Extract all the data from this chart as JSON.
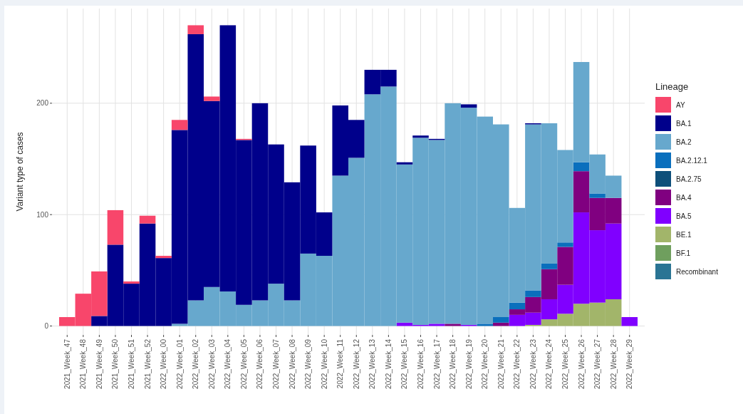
{
  "chart_data": {
    "type": "bar",
    "stacked": true,
    "ylabel": "Variant type of cases",
    "legend_title": "Lineage",
    "legend": "right",
    "grid": true,
    "ylim": [
      -8,
      285
    ],
    "yticks": [
      0,
      100,
      200
    ],
    "categories": [
      "2021_Week_47",
      "2021_Week_48",
      "2021_Week_49",
      "2021_Week_50",
      "2021_Week_51",
      "2021_Week_52",
      "2022_Week_00",
      "2022_Week_01",
      "2022_Week_02",
      "2022_Week_03",
      "2022_Week_04",
      "2022_Week_05",
      "2022_Week_06",
      "2022_Week_07",
      "2022_Week_08",
      "2022_Week_09",
      "2022_Week_10",
      "2022_Week_11",
      "2022_Week_12",
      "2022_Week_13",
      "2022_Week_14",
      "2022_Week_15",
      "2022_Week_16",
      "2022_Week_17",
      "2022_Week_18",
      "2022_Week_19",
      "2022_Week_20",
      "2022_Week_21",
      "2022_Week_22",
      "2022_Week_23",
      "2022_Week_24",
      "2022_Week_25",
      "2022_Week_26",
      "2022_Week_27",
      "2022_Week_28",
      "2022_Week_29"
    ],
    "series": [
      {
        "name": "Recombinant",
        "color": "#2a7494",
        "values": [
          0,
          0,
          0,
          0,
          0,
          0,
          0,
          0,
          0,
          0,
          0,
          0,
          0,
          0,
          0,
          0,
          0,
          0,
          0,
          0,
          0,
          0,
          0,
          0,
          0,
          0,
          0,
          0,
          0,
          0,
          0,
          0,
          0,
          0,
          0,
          0
        ]
      },
      {
        "name": "BF.1",
        "color": "#6f9f5e",
        "values": [
          0,
          0,
          0,
          0,
          0,
          0,
          0,
          0,
          0,
          0,
          0,
          0,
          0,
          0,
          0,
          0,
          0,
          0,
          0,
          0,
          0,
          0,
          0,
          0,
          0,
          0,
          0,
          0,
          0,
          0,
          0,
          0,
          0,
          0,
          0,
          0
        ]
      },
      {
        "name": "BE.1",
        "color": "#a2b56a",
        "values": [
          0,
          0,
          0,
          0,
          0,
          0,
          0,
          0,
          0,
          0,
          0,
          0,
          0,
          0,
          0,
          0,
          0,
          0,
          0,
          0,
          0,
          0,
          0,
          0,
          0,
          0,
          0,
          0,
          0,
          1,
          6,
          11,
          20,
          21,
          24,
          0
        ]
      },
      {
        "name": "BA.5",
        "color": "#8000ff",
        "values": [
          0,
          0,
          0,
          0,
          0,
          0,
          0,
          0,
          0,
          0,
          0,
          0,
          0,
          0,
          0,
          0,
          0,
          0,
          0,
          0,
          0,
          3,
          1,
          2,
          0,
          1,
          0,
          0,
          10,
          11,
          18,
          26,
          82,
          65,
          68,
          8
        ]
      },
      {
        "name": "BA.4",
        "color": "#800080",
        "values": [
          0,
          0,
          0,
          0,
          0,
          0,
          0,
          0,
          0,
          0,
          0,
          0,
          0,
          0,
          0,
          0,
          0,
          0,
          0,
          0,
          0,
          0,
          0,
          0,
          2,
          0,
          0,
          3,
          5,
          14,
          27,
          34,
          37,
          29,
          23,
          0
        ]
      },
      {
        "name": "BA.2.75",
        "color": "#0e4f7a",
        "values": [
          0,
          0,
          0,
          0,
          0,
          0,
          0,
          0,
          0,
          0,
          0,
          0,
          0,
          0,
          0,
          0,
          0,
          0,
          0,
          0,
          0,
          0,
          0,
          0,
          0,
          0,
          0,
          0,
          0,
          0,
          0,
          0,
          0,
          0,
          0,
          0
        ]
      },
      {
        "name": "BA.2.12.1",
        "color": "#0a6fbd",
        "values": [
          0,
          0,
          0,
          0,
          0,
          0,
          0,
          0,
          0,
          0,
          0,
          0,
          0,
          0,
          0,
          0,
          0,
          0,
          0,
          0,
          0,
          0,
          0,
          0,
          0,
          0,
          2,
          5,
          6,
          6,
          5,
          4,
          8,
          4,
          0,
          0
        ]
      },
      {
        "name": "BA.2",
        "color": "#67a8cd",
        "values": [
          0,
          0,
          0,
          0,
          0,
          0,
          0,
          2,
          23,
          35,
          31,
          19,
          23,
          38,
          23,
          65,
          63,
          135,
          151,
          208,
          215,
          142,
          168,
          165,
          198,
          195,
          186,
          173,
          85,
          149,
          126,
          83,
          90,
          35,
          20,
          0
        ]
      },
      {
        "name": "BA.1",
        "color": "#00008b",
        "values": [
          0,
          0,
          9,
          73,
          38,
          92,
          61,
          174,
          239,
          167,
          239,
          148,
          177,
          125,
          106,
          97,
          39,
          63,
          34,
          22,
          15,
          2,
          2,
          1,
          0,
          3,
          0,
          0,
          0,
          1,
          0,
          0,
          0,
          0,
          0,
          0
        ]
      },
      {
        "name": "AY",
        "color": "#f8466b",
        "values": [
          8,
          29,
          40,
          31,
          2,
          7,
          2,
          9,
          8,
          4,
          0,
          1,
          0,
          0,
          0,
          0,
          0,
          0,
          0,
          0,
          0,
          0,
          0,
          0,
          0,
          0,
          0,
          0,
          0,
          0,
          0,
          0,
          0,
          0,
          0,
          0
        ]
      }
    ]
  }
}
